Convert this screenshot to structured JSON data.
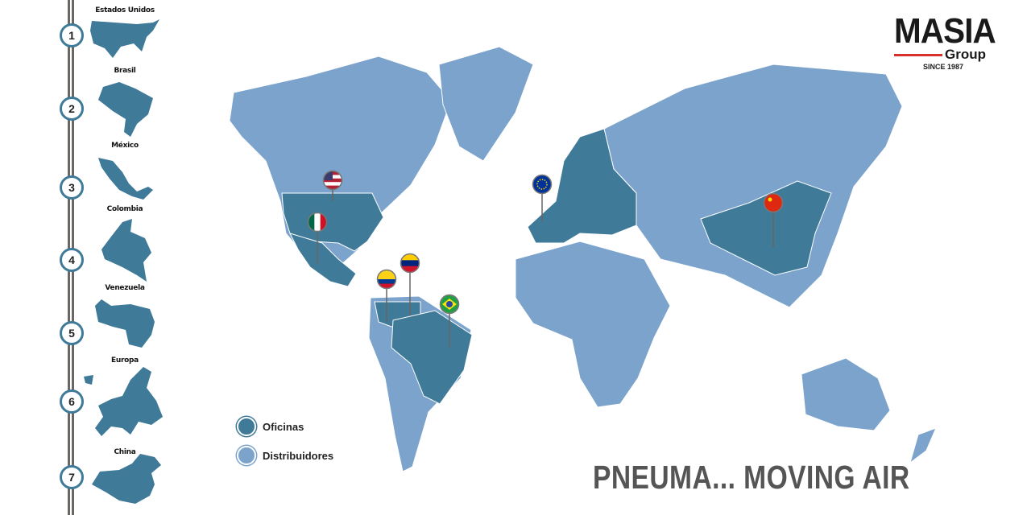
{
  "logo": {
    "name": "MASIA",
    "sub": "Group",
    "since": "SINCE 1987",
    "accent": "#d9302c"
  },
  "slogan": "PNEUMA... MOVING AIR",
  "colors": {
    "offices": "#3f7a99",
    "distributors": "#7ba3cc"
  },
  "legend": [
    {
      "label": "Oficinas",
      "color": "#3f7a99"
    },
    {
      "label": "Distribuidores",
      "color": "#7ba3cc"
    }
  ],
  "countries": [
    {
      "num": "1",
      "name": "Estados Unidos",
      "flag": "usa-flag"
    },
    {
      "num": "2",
      "name": "Brasil",
      "flag": "brazil-flag"
    },
    {
      "num": "3",
      "name": "México",
      "flag": "mexico-flag"
    },
    {
      "num": "4",
      "name": "Colombia",
      "flag": "colombia-flag"
    },
    {
      "num": "5",
      "name": "Venezuela",
      "flag": "venezuela-flag"
    },
    {
      "num": "6",
      "name": "Europa",
      "flag": "eu-flag"
    },
    {
      "num": "7",
      "name": "China",
      "flag": "china-flag"
    }
  ]
}
